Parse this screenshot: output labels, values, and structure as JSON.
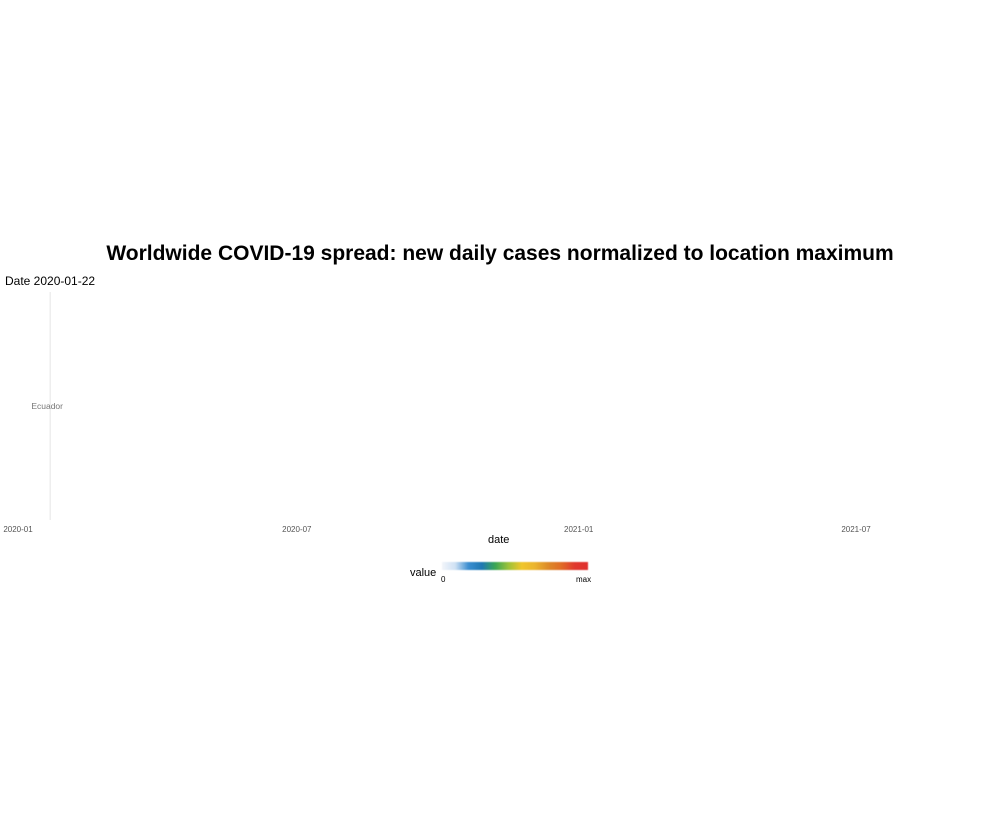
{
  "chart_data": {
    "type": "heatmap",
    "title": "Worldwide COVID-19 spread: new daily cases normalized to location maximum",
    "subtitle": "Date 2020-01-22",
    "xlabel": "date",
    "ylabel": "",
    "x_ticks": [
      "2020-01",
      "2020-07",
      "2021-01",
      "2021-07"
    ],
    "xlim": [
      "2020-01-01",
      "2021-08-31"
    ],
    "current_date": "2020-01-22",
    "rows": [
      {
        "location": "Ecuador",
        "values": [
          {
            "date": "2020-01-22",
            "value": 0
          }
        ]
      }
    ],
    "legend": {
      "title": "value",
      "min_label": "0",
      "max_label": "max",
      "colors": [
        "#f2f5fa",
        "#cfe1f4",
        "#3b8ed0",
        "#1f78b4",
        "#3aa655",
        "#9cc23a",
        "#f0c62c",
        "#ebb42e",
        "#dd8a28",
        "#e06b26",
        "#e0392e",
        "#e0302f"
      ]
    },
    "grid": true,
    "legend_position": "bottom"
  }
}
